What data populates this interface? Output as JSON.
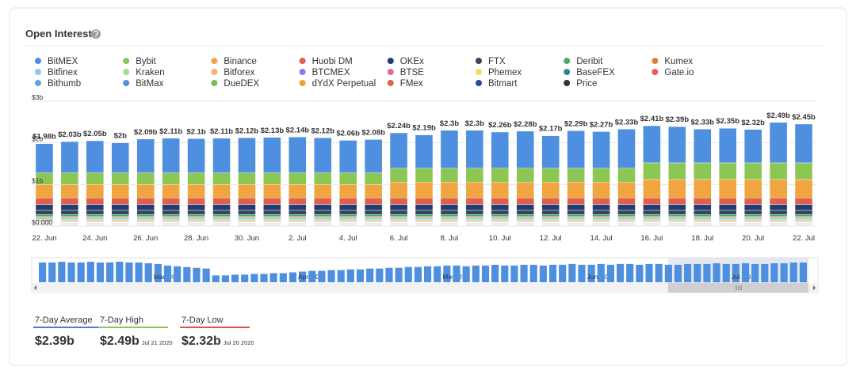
{
  "chart_data": {
    "type": "bar",
    "stacked": true,
    "title": "Open Interest",
    "categories": [
      "22. Jun",
      null,
      "24. Jun",
      null,
      "26. Jun",
      null,
      "28. Jun",
      null,
      "30. Jun",
      null,
      "2. Jul",
      null,
      "4. Jul",
      null,
      "6. Jul",
      null,
      "8. Jul",
      null,
      "10. Jul",
      null,
      "12. Jul",
      null,
      "14. Jul",
      null,
      "16. Jul",
      null,
      "18. Jul",
      null,
      "20. Jul",
      null,
      "22. Jul"
    ],
    "series": [
      {
        "name": "BitMEX",
        "color": "#4f8fe0",
        "values": [
          0.7,
          0.75,
          0.77,
          0.72,
          0.81,
          0.83,
          0.82,
          0.83,
          0.84,
          0.85,
          0.86,
          0.84,
          0.78,
          0.8,
          0.85,
          0.8,
          0.91,
          0.91,
          0.87,
          0.89,
          0.78,
          0.9,
          0.88,
          0.94,
          0.89,
          0.87,
          0.81,
          0.83,
          0.8,
          0.97,
          0.93
        ]
      },
      {
        "name": "Bybit",
        "color": "#8cc653",
        "values": [
          0.28,
          0.28,
          0.28,
          0.28,
          0.28,
          0.28,
          0.28,
          0.28,
          0.28,
          0.28,
          0.28,
          0.28,
          0.28,
          0.28,
          0.33,
          0.33,
          0.33,
          0.33,
          0.33,
          0.33,
          0.33,
          0.33,
          0.33,
          0.33,
          0.4,
          0.4,
          0.4,
          0.4,
          0.4,
          0.4,
          0.4
        ]
      },
      {
        "name": "Binance",
        "color": "#f0a540",
        "values": [
          0.32,
          0.32,
          0.32,
          0.32,
          0.32,
          0.32,
          0.32,
          0.32,
          0.32,
          0.32,
          0.32,
          0.32,
          0.32,
          0.32,
          0.38,
          0.38,
          0.38,
          0.38,
          0.38,
          0.38,
          0.38,
          0.38,
          0.38,
          0.38,
          0.44,
          0.44,
          0.44,
          0.44,
          0.44,
          0.44,
          0.44
        ]
      },
      {
        "name": "Huobi DM",
        "color": "#e0614a",
        "values": [
          0.16,
          0.16,
          0.16,
          0.16,
          0.16,
          0.16,
          0.16,
          0.16,
          0.16,
          0.16,
          0.16,
          0.16,
          0.16,
          0.16,
          0.16,
          0.16,
          0.16,
          0.16,
          0.16,
          0.16,
          0.16,
          0.16,
          0.16,
          0.16,
          0.16,
          0.16,
          0.16,
          0.16,
          0.16,
          0.16,
          0.16
        ]
      },
      {
        "name": "OKEx",
        "color": "#1f3d78",
        "values": [
          0.14,
          0.14,
          0.14,
          0.14,
          0.14,
          0.14,
          0.14,
          0.14,
          0.14,
          0.14,
          0.14,
          0.14,
          0.14,
          0.14,
          0.14,
          0.14,
          0.14,
          0.14,
          0.14,
          0.14,
          0.14,
          0.14,
          0.14,
          0.14,
          0.14,
          0.14,
          0.14,
          0.14,
          0.14,
          0.14,
          0.14
        ]
      },
      {
        "name": "FTX",
        "color": "#3a4658",
        "values": [
          0.1,
          0.1,
          0.1,
          0.1,
          0.1,
          0.1,
          0.1,
          0.1,
          0.1,
          0.1,
          0.1,
          0.1,
          0.1,
          0.1,
          0.1,
          0.1,
          0.1,
          0.1,
          0.1,
          0.1,
          0.1,
          0.1,
          0.1,
          0.1,
          0.1,
          0.1,
          0.1,
          0.1,
          0.1,
          0.1,
          0.1
        ]
      },
      {
        "name": "Deribit",
        "color": "#4caa6a",
        "values": [
          0.05,
          0.05,
          0.05,
          0.05,
          0.05,
          0.05,
          0.05,
          0.05,
          0.05,
          0.05,
          0.05,
          0.05,
          0.05,
          0.05,
          0.05,
          0.05,
          0.05,
          0.05,
          0.05,
          0.05,
          0.05,
          0.05,
          0.05,
          0.05,
          0.05,
          0.05,
          0.05,
          0.05,
          0.05,
          0.05,
          0.05
        ]
      },
      {
        "name": "Kumex",
        "color": "#e27f2d",
        "values": [
          0.02,
          0.02,
          0.02,
          0.02,
          0.02,
          0.02,
          0.02,
          0.02,
          0.02,
          0.02,
          0.02,
          0.02,
          0.02,
          0.02,
          0.02,
          0.02,
          0.02,
          0.02,
          0.02,
          0.02,
          0.02,
          0.02,
          0.02,
          0.02,
          0.02,
          0.02,
          0.02,
          0.02,
          0.02,
          0.02,
          0.02
        ]
      },
      {
        "name": "Bitfinex",
        "color": "#92c8f0",
        "values": [
          0.04,
          0.04,
          0.04,
          0.04,
          0.04,
          0.04,
          0.04,
          0.04,
          0.04,
          0.04,
          0.04,
          0.04,
          0.04,
          0.04,
          0.04,
          0.04,
          0.04,
          0.04,
          0.04,
          0.04,
          0.04,
          0.04,
          0.04,
          0.04,
          0.04,
          0.04,
          0.04,
          0.04,
          0.04,
          0.04,
          0.04
        ]
      },
      {
        "name": "Kraken",
        "color": "#a6e08a",
        "values": [
          0.03,
          0.03,
          0.03,
          0.03,
          0.03,
          0.03,
          0.03,
          0.03,
          0.03,
          0.03,
          0.03,
          0.03,
          0.03,
          0.03,
          0.03,
          0.03,
          0.03,
          0.03,
          0.03,
          0.03,
          0.03,
          0.03,
          0.03,
          0.03,
          0.03,
          0.03,
          0.03,
          0.03,
          0.03,
          0.03,
          0.03
        ]
      },
      {
        "name": "Bitforex",
        "color": "#f4b07c",
        "values": [
          0.03,
          0.03,
          0.03,
          0.03,
          0.03,
          0.03,
          0.03,
          0.03,
          0.03,
          0.03,
          0.03,
          0.03,
          0.03,
          0.03,
          0.03,
          0.03,
          0.03,
          0.03,
          0.03,
          0.03,
          0.03,
          0.03,
          0.03,
          0.03,
          0.03,
          0.03,
          0.03,
          0.03,
          0.03,
          0.03,
          0.03
        ]
      },
      {
        "name": "BTCMEX",
        "color": "#8080e8",
        "values": [
          0.01,
          0.01,
          0.01,
          0.01,
          0.01,
          0.01,
          0.01,
          0.01,
          0.01,
          0.01,
          0.01,
          0.01,
          0.01,
          0.01,
          0.01,
          0.01,
          0.01,
          0.01,
          0.01,
          0.01,
          0.01,
          0.01,
          0.01,
          0.01,
          0.01,
          0.01,
          0.01,
          0.01,
          0.01,
          0.01,
          0.01
        ]
      },
      {
        "name": "BTSE",
        "color": "#e86a8a",
        "values": [
          0.01,
          0.01,
          0.01,
          0.01,
          0.01,
          0.01,
          0.01,
          0.01,
          0.01,
          0.01,
          0.01,
          0.01,
          0.01,
          0.01,
          0.01,
          0.01,
          0.01,
          0.01,
          0.01,
          0.01,
          0.01,
          0.01,
          0.01,
          0.01,
          0.01,
          0.01,
          0.01,
          0.01,
          0.01,
          0.01,
          0.01
        ]
      },
      {
        "name": "Phemex",
        "color": "#f0df5e",
        "values": [
          0.01,
          0.01,
          0.01,
          0.01,
          0.01,
          0.01,
          0.01,
          0.01,
          0.01,
          0.01,
          0.01,
          0.01,
          0.01,
          0.01,
          0.01,
          0.01,
          0.01,
          0.01,
          0.01,
          0.01,
          0.01,
          0.01,
          0.01,
          0.01,
          0.01,
          0.01,
          0.01,
          0.01,
          0.01,
          0.01,
          0.01
        ]
      },
      {
        "name": "BaseFEX",
        "color": "#2e8a88",
        "values": [
          0.01,
          0.01,
          0.01,
          0.01,
          0.01,
          0.01,
          0.01,
          0.01,
          0.01,
          0.01,
          0.01,
          0.01,
          0.01,
          0.01,
          0.01,
          0.01,
          0.01,
          0.01,
          0.01,
          0.01,
          0.01,
          0.01,
          0.01,
          0.01,
          0.01,
          0.01,
          0.01,
          0.01,
          0.01,
          0.01,
          0.01
        ]
      },
      {
        "name": "Gate.io",
        "color": "#ee5a5a",
        "values": [
          0.01,
          0.01,
          0.01,
          0.01,
          0.01,
          0.01,
          0.01,
          0.01,
          0.01,
          0.01,
          0.01,
          0.01,
          0.01,
          0.01,
          0.01,
          0.01,
          0.01,
          0.01,
          0.01,
          0.01,
          0.01,
          0.01,
          0.01,
          0.01,
          0.01,
          0.01,
          0.01,
          0.01,
          0.01,
          0.01,
          0.01
        ]
      },
      {
        "name": "Bithumb",
        "color": "#5aa8e8",
        "values": [
          0.01,
          0.01,
          0.01,
          0.01,
          0.01,
          0.01,
          0.01,
          0.01,
          0.01,
          0.01,
          0.01,
          0.01,
          0.01,
          0.01,
          0.01,
          0.01,
          0.01,
          0.01,
          0.01,
          0.01,
          0.01,
          0.01,
          0.01,
          0.01,
          0.01,
          0.01,
          0.01,
          0.01,
          0.01,
          0.01,
          0.01
        ]
      },
      {
        "name": "BitMax",
        "color": "#5a8ee0",
        "values": [
          0.01,
          0.01,
          0.01,
          0.01,
          0.01,
          0.01,
          0.01,
          0.01,
          0.01,
          0.01,
          0.01,
          0.01,
          0.01,
          0.01,
          0.01,
          0.01,
          0.01,
          0.01,
          0.01,
          0.01,
          0.01,
          0.01,
          0.01,
          0.01,
          0.01,
          0.01,
          0.01,
          0.01,
          0.01,
          0.01,
          0.01
        ]
      },
      {
        "name": "DueDEX",
        "color": "#7ac050",
        "values": [
          0.01,
          0.01,
          0.01,
          0.01,
          0.01,
          0.01,
          0.01,
          0.01,
          0.01,
          0.01,
          0.01,
          0.01,
          0.01,
          0.01,
          0.01,
          0.01,
          0.01,
          0.01,
          0.01,
          0.01,
          0.01,
          0.01,
          0.01,
          0.01,
          0.01,
          0.01,
          0.01,
          0.01,
          0.01,
          0.01,
          0.01
        ]
      },
      {
        "name": "dYdX Perpetual",
        "color": "#f0a030",
        "values": [
          0.01,
          0.01,
          0.01,
          0.01,
          0.01,
          0.01,
          0.01,
          0.01,
          0.01,
          0.01,
          0.01,
          0.01,
          0.01,
          0.01,
          0.01,
          0.01,
          0.01,
          0.01,
          0.01,
          0.01,
          0.01,
          0.01,
          0.01,
          0.01,
          0.01,
          0.01,
          0.01,
          0.01,
          0.01,
          0.01,
          0.01
        ]
      },
      {
        "name": "FMex",
        "color": "#e06050",
        "values": [
          0.01,
          0.01,
          0.01,
          0.01,
          0.01,
          0.01,
          0.01,
          0.01,
          0.01,
          0.01,
          0.01,
          0.01,
          0.01,
          0.01,
          0.01,
          0.01,
          0.01,
          0.01,
          0.01,
          0.01,
          0.01,
          0.01,
          0.01,
          0.01,
          0.01,
          0.01,
          0.01,
          0.01,
          0.01,
          0.01,
          0.01
        ]
      },
      {
        "name": "Bitmart",
        "color": "#2a4a90",
        "values": [
          0.01,
          0.01,
          0.01,
          0.01,
          0.01,
          0.01,
          0.01,
          0.01,
          0.01,
          0.01,
          0.01,
          0.01,
          0.01,
          0.01,
          0.01,
          0.01,
          0.01,
          0.01,
          0.01,
          0.01,
          0.01,
          0.01,
          0.01,
          0.01,
          0.01,
          0.01,
          0.01,
          0.01,
          0.01,
          0.01,
          0.01
        ]
      }
    ],
    "legend_hidden": [
      {
        "name": "Price",
        "color": "#333333"
      }
    ],
    "totals": {
      "values": [
        1.98,
        2.03,
        2.05,
        2,
        2.09,
        2.11,
        2.1,
        2.11,
        2.12,
        2.13,
        2.14,
        2.12,
        2.06,
        2.08,
        2.24,
        2.19,
        2.3,
        2.3,
        2.26,
        2.28,
        2.17,
        2.29,
        2.27,
        2.33,
        2.41,
        2.39,
        2.33,
        2.35,
        2.32,
        2.49,
        2.45
      ],
      "value_labels": [
        "$1.98b",
        "$2.03b",
        "$2.05b",
        "$2b",
        "$2.09b",
        "$2.11b",
        "$2.1b",
        "$2.11b",
        "$2.12b",
        "$2.13b",
        "$2.14b",
        "$2.12b",
        "$2.06b",
        "$2.08b",
        "$2.24b",
        "$2.19b",
        "$2.3b",
        "$2.3b",
        "$2.26b",
        "$2.28b",
        "$2.17b",
        "$2.29b",
        "$2.27b",
        "$2.33b",
        "$2.41b",
        "$2.39b",
        "$2.33b",
        "$2.35b",
        "$2.32b",
        "$2.49b",
        "$2.45b"
      ]
    },
    "ylim": [
      0,
      3
    ],
    "yticks": [
      {
        "value": 0,
        "label": "$0.000"
      },
      {
        "value": 1,
        "label": "$1b"
      },
      {
        "value": 2,
        "label": "$2b"
      },
      {
        "value": 3,
        "label": "$3b"
      }
    ],
    "grid": true,
    "navigator": {
      "categories": [
        null,
        null,
        null,
        null,
        null,
        null,
        null,
        null,
        null,
        null,
        null,
        null,
        "Mar '20",
        null,
        null,
        null,
        null,
        null,
        null,
        null,
        null,
        null,
        null,
        null,
        null,
        null,
        null,
        "Apr '20",
        null,
        null,
        null,
        null,
        null,
        null,
        null,
        null,
        null,
        null,
        null,
        null,
        null,
        null,
        "May '20",
        null,
        null,
        null,
        null,
        null,
        null,
        null,
        null,
        null,
        null,
        null,
        null,
        null,
        null,
        "Jun '20",
        null,
        null,
        null,
        null,
        null,
        null,
        null,
        null,
        null,
        null,
        null,
        null,
        null,
        null,
        "Jul '20",
        null,
        null,
        null,
        null,
        null,
        null,
        null
      ],
      "values": [
        2.6,
        2.6,
        2.7,
        2.6,
        2.6,
        2.7,
        2.6,
        2.6,
        2.7,
        2.6,
        2.6,
        2.5,
        2.4,
        2.2,
        2.1,
        2.0,
        1.9,
        1.8,
        0.9,
        0.9,
        1.0,
        1.0,
        1.1,
        1.1,
        1.2,
        1.2,
        1.3,
        1.4,
        1.5,
        1.5,
        1.6,
        1.6,
        1.7,
        1.7,
        1.8,
        1.8,
        1.9,
        1.9,
        2.0,
        2.0,
        2.1,
        2.1,
        2.2,
        2.2,
        2.1,
        2.2,
        2.2,
        2.3,
        2.2,
        2.2,
        2.3,
        2.3,
        2.2,
        2.3,
        2.3,
        2.4,
        2.3,
        2.3,
        2.4,
        2.3,
        2.4,
        2.4,
        2.3,
        2.4,
        2.4,
        2.3,
        2.3,
        2.4,
        2.4,
        2.4,
        2.5,
        2.4,
        2.4,
        2.5,
        2.4,
        2.4,
        2.5,
        2.5,
        2.6,
        2.6
      ],
      "color": "#4f8fe0"
    }
  },
  "stats": [
    {
      "label": "7-Day Average",
      "value": "$2.39b",
      "color": "#4a7fd4"
    },
    {
      "label": "7-Day High",
      "value": "$2.49b",
      "date": "Jul 21 2020",
      "color": "#8cc653"
    },
    {
      "label": "7-Day Low",
      "value": "$2.32b",
      "date": "Jul 20 2020",
      "color": "#d9534f"
    }
  ]
}
